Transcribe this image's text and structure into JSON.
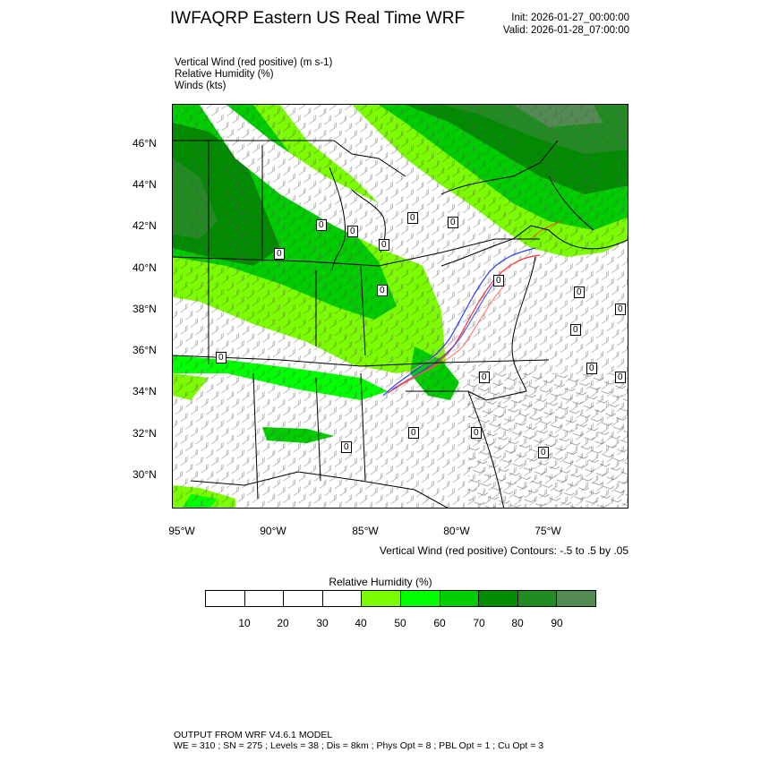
{
  "header": {
    "title": "IWFAQRP Eastern US Real Time WRF",
    "init": "Init: 2026-01-27_00:00:00",
    "valid": "Valid: 2026-01-28_07:00:00"
  },
  "fields": {
    "vertical_wind": "Vertical Wind (red positive)   (m s-1)",
    "relative_humidity": "Relative Humidity   (%)",
    "winds": "Winds   (kts)"
  },
  "map": {
    "lat_ticks": [
      "46°N",
      "44°N",
      "42°N",
      "40°N",
      "38°N",
      "36°N",
      "34°N",
      "32°N",
      "30°N"
    ],
    "lon_ticks": [
      "95°W",
      "90°W",
      "85°W",
      "80°W",
      "75°W"
    ],
    "contour_note": "Vertical Wind (red positive) Contours: -.5 to .5 by .05",
    "contour_labels": [
      "0",
      "0",
      "0",
      "0",
      "0",
      "0",
      "0",
      "0",
      "0",
      "0",
      "0",
      "0",
      "0",
      "0",
      "0",
      "0",
      "0",
      "0",
      "0"
    ]
  },
  "colorbar": {
    "title": "Relative Humidity  (%)",
    "labels": [
      "10",
      "20",
      "30",
      "40",
      "50",
      "60",
      "70",
      "80",
      "90"
    ],
    "colors": [
      "#ffffff",
      "#ffffff",
      "#ffffff",
      "#ffffff",
      "#7cfc00",
      "#00ff00",
      "#00cd00",
      "#008b00",
      "#228b22",
      "#548b54"
    ]
  },
  "footer": {
    "line1": "OUTPUT FROM WRF V4.6.1 MODEL",
    "line2": "WE = 310 ; SN = 275 ; Levels = 38 ; Dis = 8km ; Phys Opt = 8 ; PBL Opt = 1 ; Cu Opt = 3"
  }
}
